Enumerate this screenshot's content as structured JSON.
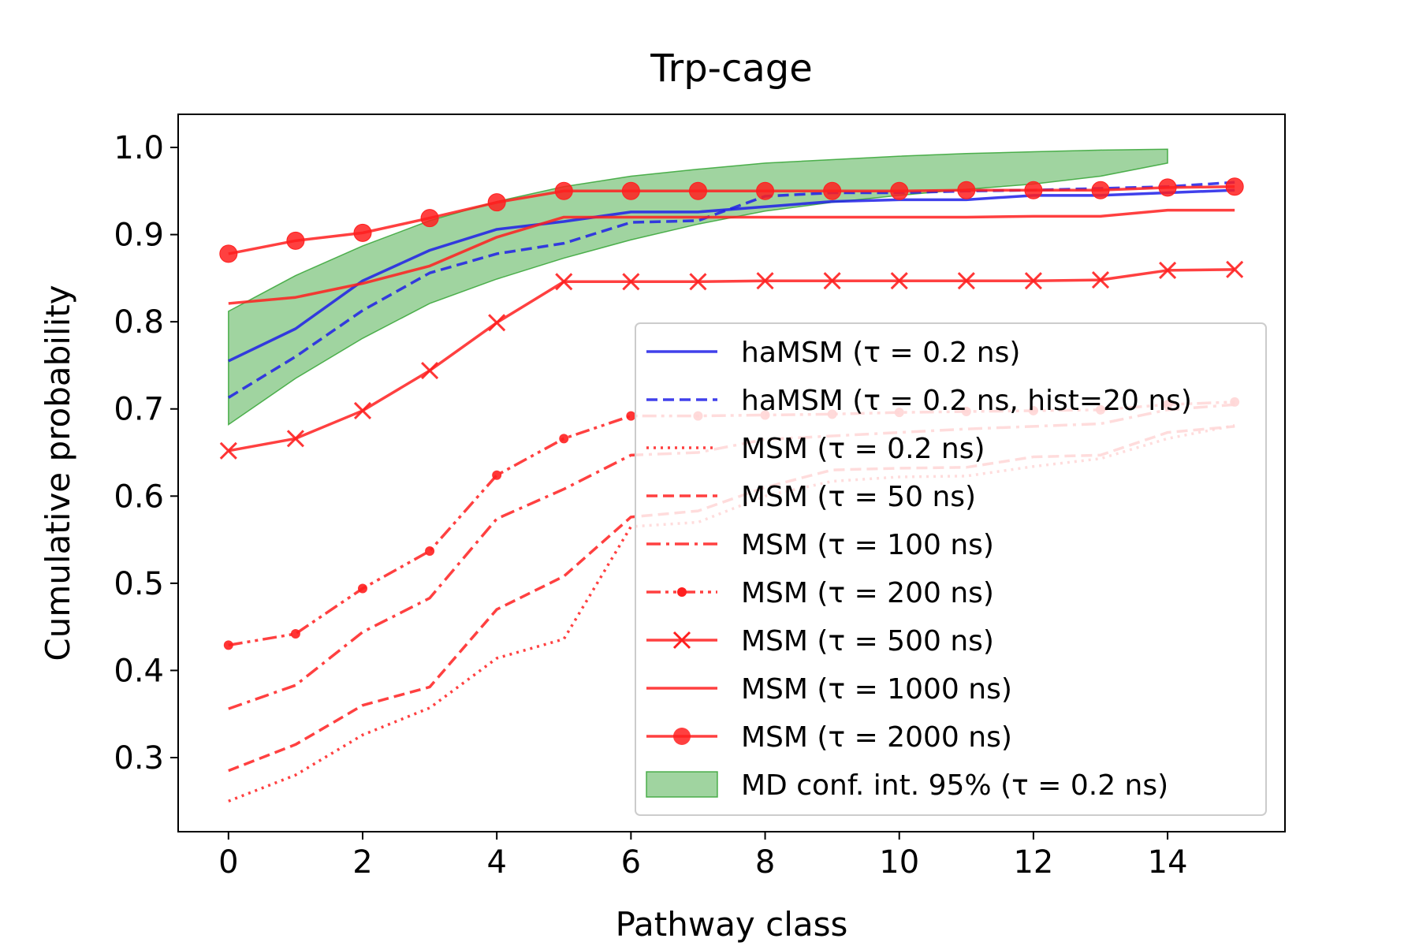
{
  "chart_data": {
    "type": "line",
    "title": "Trp-cage",
    "xlabel": "Pathway class",
    "ylabel": "Cumulative probability",
    "xlim": [
      -0.75,
      15.75
    ],
    "ylim": [
      0.215,
      1.038
    ],
    "xticks": [
      "0",
      "2",
      "4",
      "6",
      "8",
      "10",
      "12",
      "14"
    ],
    "xtick_values": [
      0,
      2,
      4,
      6,
      8,
      10,
      12,
      14
    ],
    "yticks": [
      "0.3",
      "0.4",
      "0.5",
      "0.6",
      "0.7",
      "0.8",
      "0.9",
      "1.0"
    ],
    "ytick_values": [
      0.3,
      0.4,
      0.5,
      0.6,
      0.7,
      0.8,
      0.9,
      1.0
    ],
    "legend_position": "lower-right",
    "band": {
      "label": "MD conf. int. 95% (τ = 0.2 ns)",
      "color": "#2ca02c",
      "x": [
        0,
        1,
        2,
        3,
        4,
        5,
        6,
        7,
        8,
        9,
        10,
        11,
        12,
        13,
        14
      ],
      "upper": [
        0.812,
        0.853,
        0.887,
        0.916,
        0.938,
        0.955,
        0.967,
        0.975,
        0.982,
        0.986,
        0.99,
        0.993,
        0.995,
        0.997,
        0.998
      ],
      "lower": [
        0.682,
        0.735,
        0.781,
        0.821,
        0.849,
        0.873,
        0.894,
        0.912,
        0.927,
        0.937,
        0.945,
        0.952,
        0.958,
        0.967,
        0.982
      ]
    },
    "series": [
      {
        "name": "haMSM (τ = 0.2 ns)",
        "color": "#1f1fe8",
        "dash": "solid",
        "marker": "none",
        "x": [
          0,
          1,
          2,
          3,
          4,
          5,
          6,
          7,
          8,
          9,
          10,
          11,
          12,
          13,
          14,
          15
        ],
        "y": [
          0.755,
          0.792,
          0.847,
          0.882,
          0.906,
          0.915,
          0.926,
          0.926,
          0.932,
          0.938,
          0.94,
          0.94,
          0.945,
          0.945,
          0.948,
          0.951
        ]
      },
      {
        "name": "haMSM (τ = 0.2 ns, hist=20 ns)",
        "color": "#1f1fe8",
        "dash": "dashed",
        "marker": "none",
        "x": [
          0,
          1,
          2,
          3,
          4,
          5,
          6,
          7,
          8,
          9,
          10,
          11,
          12,
          13,
          14,
          15
        ],
        "y": [
          0.713,
          0.76,
          0.813,
          0.856,
          0.878,
          0.89,
          0.914,
          0.916,
          0.944,
          0.948,
          0.948,
          0.95,
          0.951,
          0.953,
          0.955,
          0.96
        ]
      },
      {
        "name": "MSM (τ = 0.2 ns)",
        "color": "#ff1f1f",
        "dash": "dotted",
        "marker": "none",
        "x": [
          0,
          1,
          2,
          3,
          4,
          5,
          6,
          7,
          8,
          9,
          10,
          11,
          12,
          13,
          14,
          15
        ],
        "y": [
          0.25,
          0.28,
          0.326,
          0.357,
          0.414,
          0.436,
          0.565,
          0.57,
          0.6,
          0.617,
          0.622,
          0.623,
          0.634,
          0.643,
          0.666,
          0.681
        ]
      },
      {
        "name": "MSM (τ = 50 ns)",
        "color": "#ff1f1f",
        "dash": "dashed",
        "marker": "none",
        "x": [
          0,
          1,
          2,
          3,
          4,
          5,
          6,
          7,
          8,
          9,
          10,
          11,
          12,
          13,
          14,
          15
        ],
        "y": [
          0.285,
          0.315,
          0.36,
          0.381,
          0.47,
          0.508,
          0.576,
          0.583,
          0.61,
          0.63,
          0.632,
          0.633,
          0.645,
          0.647,
          0.673,
          0.68
        ]
      },
      {
        "name": "MSM (τ = 100 ns)",
        "color": "#ff1f1f",
        "dash": "dashdot",
        "marker": "none",
        "x": [
          0,
          1,
          2,
          3,
          4,
          5,
          6,
          7,
          8,
          9,
          10,
          11,
          12,
          13,
          14,
          15
        ],
        "y": [
          0.356,
          0.383,
          0.444,
          0.483,
          0.574,
          0.608,
          0.647,
          0.65,
          0.665,
          0.669,
          0.673,
          0.677,
          0.68,
          0.683,
          0.699,
          0.705
        ]
      },
      {
        "name": "MSM (τ = 200 ns)",
        "color": "#ff1f1f",
        "dash": "dashdotdot",
        "marker": "dot",
        "x": [
          0,
          1,
          2,
          3,
          4,
          5,
          6,
          7,
          8,
          9,
          10,
          11,
          12,
          13,
          14,
          15
        ],
        "y": [
          0.429,
          0.442,
          0.494,
          0.537,
          0.624,
          0.666,
          0.692,
          0.692,
          0.693,
          0.694,
          0.696,
          0.697,
          0.698,
          0.699,
          0.705,
          0.708
        ]
      },
      {
        "name": "MSM (τ = 500 ns)",
        "color": "#ff1f1f",
        "dash": "solid",
        "marker": "x",
        "x": [
          0,
          1,
          2,
          3,
          4,
          5,
          6,
          7,
          8,
          9,
          10,
          11,
          12,
          13,
          14,
          15
        ],
        "y": [
          0.652,
          0.666,
          0.698,
          0.744,
          0.799,
          0.846,
          0.846,
          0.846,
          0.847,
          0.847,
          0.847,
          0.847,
          0.847,
          0.848,
          0.859,
          0.86
        ]
      },
      {
        "name": "MSM (τ = 1000 ns)",
        "color": "#ff1f1f",
        "dash": "solid",
        "marker": "none",
        "x": [
          0,
          1,
          2,
          3,
          4,
          5,
          6,
          7,
          8,
          9,
          10,
          11,
          12,
          13,
          14,
          15
        ],
        "y": [
          0.821,
          0.828,
          0.844,
          0.864,
          0.897,
          0.92,
          0.92,
          0.92,
          0.92,
          0.92,
          0.92,
          0.92,
          0.921,
          0.921,
          0.928,
          0.928
        ]
      },
      {
        "name": "MSM (τ = 2000 ns)",
        "color": "#ff1f1f",
        "dash": "solid",
        "marker": "circle",
        "x": [
          0,
          1,
          2,
          3,
          4,
          5,
          6,
          7,
          8,
          9,
          10,
          11,
          12,
          13,
          14,
          15
        ],
        "y": [
          0.878,
          0.893,
          0.902,
          0.919,
          0.937,
          0.95,
          0.95,
          0.95,
          0.95,
          0.95,
          0.95,
          0.951,
          0.951,
          0.951,
          0.954,
          0.955
        ]
      }
    ]
  }
}
